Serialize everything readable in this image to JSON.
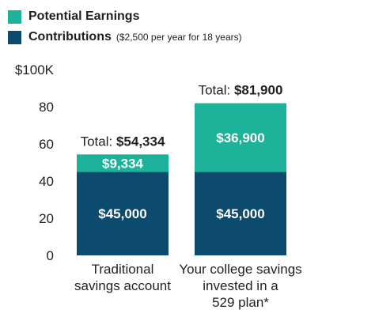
{
  "legend": {
    "earnings_label": "Potential Earnings",
    "contributions_label": "Contributions",
    "contributions_note": "($2,500 per year for 18 years)"
  },
  "colors": {
    "earnings": "#1db39a",
    "contributions": "#0c4a6e"
  },
  "chart_data": {
    "type": "bar",
    "stacked": true,
    "ylim": [
      0,
      100
    ],
    "yticks": [
      {
        "value": 0,
        "label": "0"
      },
      {
        "value": 20,
        "label": "20"
      },
      {
        "value": 40,
        "label": "40"
      },
      {
        "value": 60,
        "label": "60"
      },
      {
        "value": 80,
        "label": "80"
      },
      {
        "value": 100,
        "label": "$100K"
      }
    ],
    "categories": [
      {
        "lines": [
          "Traditional",
          "savings account"
        ]
      },
      {
        "lines": [
          "Your college savings",
          "invested in a",
          "529 plan*"
        ]
      }
    ],
    "series": [
      {
        "name": "Contributions",
        "values": [
          45.0,
          45.0
        ],
        "labels": [
          "$45,000",
          "$45,000"
        ]
      },
      {
        "name": "Potential Earnings",
        "values": [
          9.334,
          36.9
        ],
        "labels": [
          "$9,334",
          "$36,900"
        ]
      }
    ],
    "totals": [
      {
        "prefix": "Total: ",
        "value": "$54,334"
      },
      {
        "prefix": "Total: ",
        "value": "$81,900"
      }
    ]
  }
}
